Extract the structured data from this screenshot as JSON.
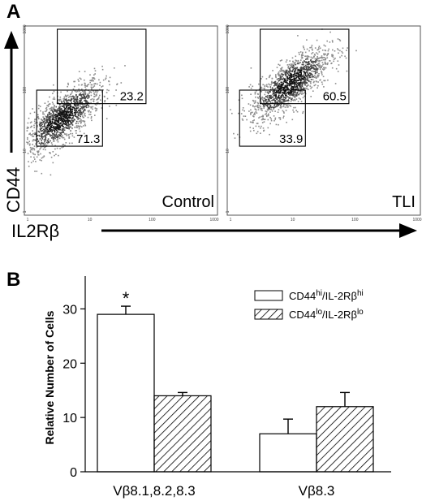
{
  "panel_labels": {
    "a": "A",
    "b": "B"
  },
  "chart_data": [
    {
      "type": "scatter",
      "panel": "A",
      "xlabel": "IL2Rβ",
      "ylabel": "CD44",
      "x_scale": "log",
      "y_scale": "log",
      "xlim": [
        1,
        1000
      ],
      "ylim": [
        1,
        1000
      ],
      "x_ticks": [
        "1",
        "10",
        "100",
        "1000"
      ],
      "y_ticks": [
        "1",
        "10",
        "100",
        "1000"
      ],
      "plots": [
        {
          "name": "Control",
          "cloud_center": [
            3.5,
            35
          ],
          "gates": [
            {
              "label": "23.2",
              "x_range": [
                3,
                80
              ],
              "y_range": [
                60,
                1000
              ]
            },
            {
              "label": "71.3",
              "x_range": [
                1.4,
                16
              ],
              "y_range": [
                12,
                100
              ]
            }
          ]
        },
        {
          "name": "TLI",
          "cloud_center": [
            9,
            130
          ],
          "gates": [
            {
              "label": "60.5",
              "x_range": [
                3,
                80
              ],
              "y_range": [
                60,
                1000
              ]
            },
            {
              "label": "33.9",
              "x_range": [
                1.4,
                16
              ],
              "y_range": [
                12,
                100
              ]
            }
          ]
        }
      ]
    },
    {
      "type": "bar",
      "panel": "B",
      "categories": [
        "Vβ8.1,8.2,8.3",
        "Vβ8.3"
      ],
      "series": [
        {
          "name": "CD44hi/IL-2Rβhi",
          "name_main1": "CD44",
          "name_sup1": "hi",
          "name_main2": "/IL-2Rβ",
          "name_sup2": "hi",
          "values": [
            29,
            7
          ],
          "errors": [
            1.5,
            2.7
          ],
          "pattern": "open"
        },
        {
          "name": "CD44lo/IL-2Rβlo",
          "name_main1": "CD44",
          "name_sup1": "lo",
          "name_main2": "/IL-2Rβ",
          "name_sup2": "lo",
          "values": [
            14,
            12
          ],
          "errors": [
            0.6,
            2.6
          ],
          "pattern": "hatched"
        }
      ],
      "annotations": [
        {
          "text": "*",
          "category": 0,
          "series": 0
        }
      ],
      "ylabel": "Relative Number of Cells",
      "ylim": [
        0,
        35
      ],
      "y_ticks": [
        0,
        10,
        20,
        30
      ],
      "legend_position": "top-right"
    }
  ]
}
